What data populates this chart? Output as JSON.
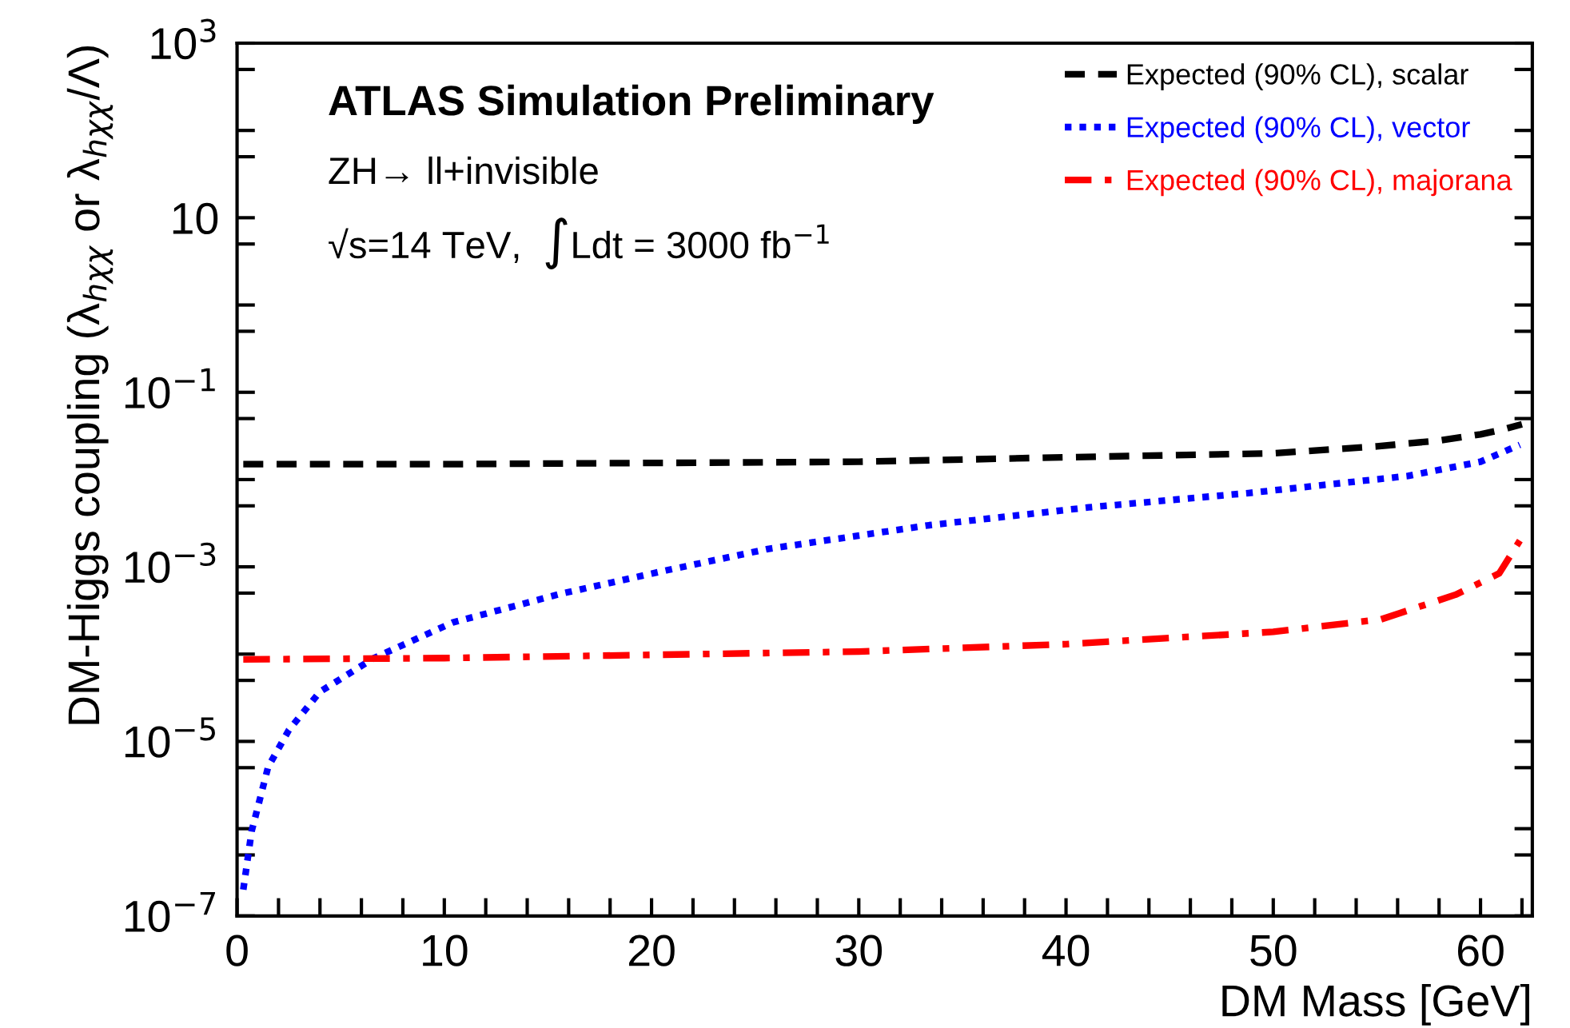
{
  "chart_data": {
    "type": "line",
    "xlabel": "DM Mass [GeV]",
    "ylabel": "DM-Higgs coupling (λ$_{hχχ}$ or λ$_{hχχ}$/Λ)",
    "annotations": [
      "ATLAS Simulation Preliminary",
      "ZH→ ll+invisible",
      "√s=14 TeV,  ∫Ldt = 3000 fb$^{−1}$"
    ],
    "log": "y",
    "grid": false,
    "legend": "top right",
    "xlim": [
      0,
      62.5
    ],
    "ylim": [
      1e-07,
      1000
    ],
    "xticks": [
      0,
      {
        "value": 2,
        "label": null
      },
      {
        "value": 4,
        "label": null
      },
      {
        "value": 6,
        "label": null
      },
      {
        "value": 8,
        "label": null
      },
      10,
      {
        "value": 12,
        "label": null
      },
      {
        "value": 14,
        "label": null
      },
      {
        "value": 16,
        "label": null
      },
      {
        "value": 18,
        "label": null
      },
      20,
      {
        "value": 22,
        "label": null
      },
      {
        "value": 24,
        "label": null
      },
      {
        "value": 26,
        "label": null
      },
      {
        "value": 28,
        "label": null
      },
      30,
      {
        "value": 32,
        "label": null
      },
      {
        "value": 34,
        "label": null
      },
      {
        "value": 36,
        "label": null
      },
      {
        "value": 38,
        "label": null
      },
      40,
      {
        "value": 42,
        "label": null
      },
      {
        "value": 44,
        "label": null
      },
      {
        "value": 46,
        "label": null
      },
      {
        "value": 48,
        "label": null
      },
      50,
      {
        "value": 52,
        "label": null
      },
      {
        "value": 54,
        "label": null
      },
      {
        "value": 56,
        "label": null
      },
      {
        "value": 58,
        "label": null
      },
      60,
      {
        "value": 62,
        "label": null
      }
    ],
    "yticks": [
      {
        "value": 1e-07,
        "label": "10$^{−7}$"
      },
      {
        "value": 5e-07,
        "label": null
      },
      {
        "value": 1e-06,
        "label": null
      },
      {
        "value": 5e-06,
        "label": null
      },
      {
        "value": 1e-05,
        "label": "10$^{−5}$"
      },
      {
        "value": 5e-05,
        "label": null
      },
      {
        "value": 0.0001,
        "label": null
      },
      {
        "value": 0.0005,
        "label": null
      },
      {
        "value": 0.001,
        "label": "10$^{−3}$"
      },
      {
        "value": 0.005,
        "label": null
      },
      {
        "value": 0.01,
        "label": null
      },
      {
        "value": 0.05,
        "label": null
      },
      {
        "value": 0.1,
        "label": "10$^{−1}$"
      },
      {
        "value": 0.5,
        "label": null
      },
      {
        "value": 1,
        "label": null
      },
      {
        "value": 5,
        "label": null
      },
      10,
      {
        "value": 50,
        "label": null
      },
      {
        "value": 100,
        "label": null
      },
      {
        "value": 500,
        "label": null
      },
      {
        "value": 1000,
        "label": "10$^{3}$"
      }
    ],
    "series": [
      {
        "name": "Expected (90% CL), scalar",
        "color": "#000000",
        "line_style": "dashed",
        "x": [
          0.3,
          10,
          20,
          30,
          40,
          50,
          55,
          58,
          60,
          61,
          62
        ],
        "values": [
          0.015,
          0.015,
          0.0155,
          0.016,
          0.018,
          0.02,
          0.024,
          0.028,
          0.033,
          0.037,
          0.043
        ]
      },
      {
        "name": "Expected (90% CL), vector",
        "color": "#0000ff",
        "line_style": "dotted",
        "x": [
          0.3,
          0.7,
          1.5,
          2.5,
          4.0,
          6.6,
          10.4,
          15.6,
          20.8,
          25.6,
          33.4,
          41.1,
          48.8,
          56.5,
          60,
          61.9
        ],
        "values": [
          2e-07,
          9.3e-07,
          5.1e-06,
          1.35e-05,
          3.7e-05,
          9e-05,
          0.00023,
          0.00049,
          0.00092,
          0.0016,
          0.003,
          0.0048,
          0.007,
          0.011,
          0.016,
          0.025
        ]
      },
      {
        "name": "Expected (90% CL), majorana",
        "color": "#ff0000",
        "line_style": "dashdot",
        "x": [
          0.3,
          10,
          20,
          30,
          40,
          50,
          55.2,
          58.8,
          60.9,
          61.9
        ],
        "values": [
          8.7e-05,
          9e-05,
          9.8e-05,
          0.000107,
          0.00013,
          0.00018,
          0.00025,
          0.00048,
          0.00084,
          0.002
        ]
      }
    ]
  }
}
